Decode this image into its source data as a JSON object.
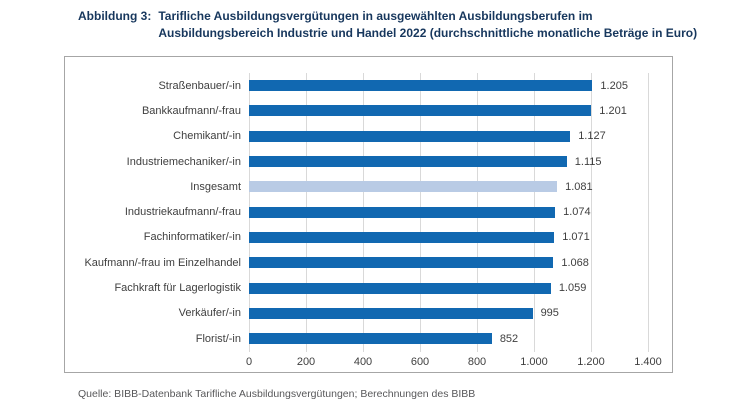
{
  "title": {
    "label": "Abbildung 3:",
    "line1": "Tarifliche Ausbildungsvergütungen in ausgewählten Ausbildungsberufen im",
    "line2": "Ausbildungsbereich Industrie und Handel 2022 (durchschnittliche monatliche Beträge in Euro)"
  },
  "chart_data": {
    "type": "bar",
    "orientation": "horizontal",
    "categories": [
      "Straßenbauer/-in",
      "Bankkaufmann/-frau",
      "Chemikant/-in",
      "Industriemechaniker/-in",
      "Insgesamt",
      "Industriekaufmann/-frau",
      "Fachinformatiker/-in",
      "Kaufmann/-frau im Einzelhandel",
      "Fachkraft für Lagerlogistik",
      "Verkäufer/-in",
      "Florist/-in"
    ],
    "values": [
      1205,
      1201,
      1127,
      1115,
      1081,
      1074,
      1071,
      1068,
      1059,
      995,
      852
    ],
    "value_labels": [
      "1.205",
      "1.201",
      "1.127",
      "1.115",
      "1.081",
      "1.074",
      "1.071",
      "1.068",
      "1.059",
      "995",
      "852"
    ],
    "highlight_index": 4,
    "xlim": [
      0,
      1400
    ],
    "ticks": [
      0,
      200,
      400,
      600,
      800,
      1000,
      1200,
      1400
    ],
    "tick_labels": [
      "0",
      "200",
      "400",
      "600",
      "800",
      "1.000",
      "1.200",
      "1.400"
    ],
    "grid": "vertical",
    "legend": "none",
    "xlabel": "",
    "ylabel": ""
  },
  "colors": {
    "bar": "#1168b1",
    "highlight": "#b9cbe5",
    "title": "#17375d",
    "text": "#3f3f3f",
    "grid": "#d9d9d9",
    "frame_border": "#a6a6a6",
    "source_text": "#58585a"
  },
  "source": "Quelle: BIBB-Datenbank Tarifliche Ausbildungsvergütungen; Berechnungen des BIBB"
}
